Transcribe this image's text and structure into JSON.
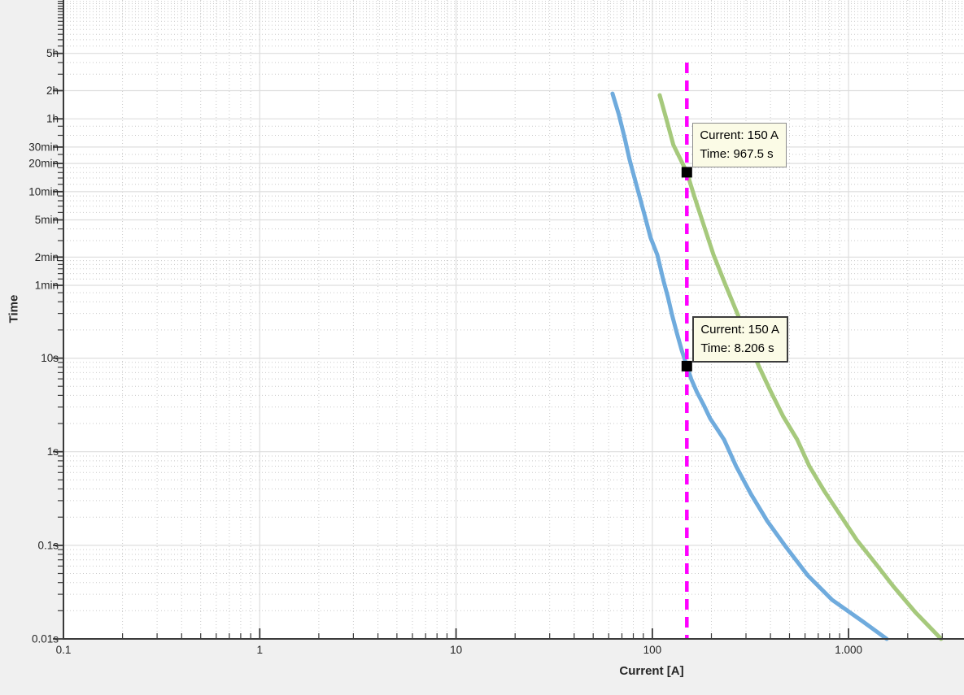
{
  "chart_data": {
    "type": "line",
    "title": "",
    "xlabel": "Current [A]",
    "ylabel": "Time",
    "xscale": "log",
    "yscale": "log",
    "xlim": [
      0.1,
      3872
    ],
    "ylim": [
      0.01,
      67000
    ],
    "grid": "major-solid-minor-dotted",
    "background_color": "#f0f0f0",
    "plot_background_color": "#ffffff",
    "major_grid_color": "#dedede",
    "minor_grid_color": "#c9c9c9",
    "axis_color": "#3a3a3a",
    "x_ticks": [
      {
        "v": 0.1,
        "label": "0.1"
      },
      {
        "v": 1,
        "label": "1"
      },
      {
        "v": 10,
        "label": "10"
      },
      {
        "v": 100,
        "label": "100"
      },
      {
        "v": 1000,
        "label": "1.000"
      }
    ],
    "x_minor": [
      0.2,
      0.3,
      0.4,
      0.5,
      0.6,
      0.7,
      0.8,
      0.9,
      2,
      3,
      4,
      5,
      6,
      7,
      8,
      9,
      20,
      30,
      40,
      50,
      60,
      70,
      80,
      90,
      200,
      300,
      400,
      500,
      600,
      700,
      800,
      900,
      2000,
      3000
    ],
    "y_ticks": [
      {
        "t": 0.01,
        "label": "0.01s"
      },
      {
        "t": 0.1,
        "label": "0.1s"
      },
      {
        "t": 1,
        "label": "1s"
      },
      {
        "t": 10,
        "label": "10s"
      },
      {
        "t": 60,
        "label": "1min"
      },
      {
        "t": 120,
        "label": "2min"
      },
      {
        "t": 300,
        "label": "5min"
      },
      {
        "t": 600,
        "label": "10min"
      },
      {
        "t": 1200,
        "label": "20min"
      },
      {
        "t": 1800,
        "label": "30min"
      },
      {
        "t": 3600,
        "label": "1h"
      },
      {
        "t": 7200,
        "label": "2h"
      },
      {
        "t": 18000,
        "label": "5h"
      }
    ],
    "y_minor": [
      0.02,
      0.03,
      0.04,
      0.05,
      0.06,
      0.07,
      0.08,
      0.09,
      0.2,
      0.3,
      0.4,
      0.5,
      0.6,
      0.7,
      0.8,
      0.9,
      2,
      3,
      4,
      5,
      6,
      7,
      8,
      9,
      20,
      30,
      40,
      50,
      70,
      80,
      90,
      100,
      110,
      180,
      240,
      360,
      420,
      480,
      540,
      720,
      840,
      960,
      1080,
      1500,
      2400,
      3000,
      10800,
      14400,
      21600,
      25200,
      28800,
      32400,
      36000,
      39600,
      43200,
      46800,
      50400,
      54000,
      57600,
      61200,
      64800
    ],
    "series": [
      {
        "name": "blue-curve",
        "color": "#6fabdd",
        "width": 5,
        "points": [
          [
            62.7,
            6700
          ],
          [
            67.4,
            4060
          ],
          [
            72.4,
            2230
          ],
          [
            76.6,
            1320
          ],
          [
            81,
            850
          ],
          [
            86,
            537
          ],
          [
            92,
            319
          ],
          [
            98,
            194
          ],
          [
            106,
            127
          ],
          [
            114,
            67
          ],
          [
            120,
            45
          ],
          [
            126,
            29
          ],
          [
            133,
            19
          ],
          [
            141,
            12.2
          ],
          [
            150,
            8.206
          ],
          [
            158,
            5.94
          ],
          [
            169,
            4.31
          ],
          [
            183,
            3.13
          ],
          [
            197,
            2.27
          ],
          [
            215,
            1.72
          ],
          [
            232,
            1.35
          ],
          [
            267,
            0.7
          ],
          [
            318,
            0.353
          ],
          [
            385,
            0.182
          ],
          [
            483,
            0.094
          ],
          [
            619,
            0.0477
          ],
          [
            824,
            0.0261
          ],
          [
            1174,
            0.0155
          ],
          [
            1564,
            0.01
          ]
        ]
      },
      {
        "name": "green-curve",
        "color": "#a6c97c",
        "width": 5,
        "points": [
          [
            109,
            6440
          ],
          [
            119,
            3330
          ],
          [
            128,
            1900
          ],
          [
            150,
            967.5
          ],
          [
            163,
            548
          ],
          [
            183,
            261
          ],
          [
            205,
            127
          ],
          [
            236,
            60.7
          ],
          [
            273,
            28.9
          ],
          [
            309,
            14.9
          ],
          [
            349,
            8.2
          ],
          [
            399,
            4.5
          ],
          [
            465,
            2.37
          ],
          [
            547,
            1.35
          ],
          [
            631,
            0.7
          ],
          [
            750,
            0.383
          ],
          [
            908,
            0.21
          ],
          [
            1098,
            0.115
          ],
          [
            1380,
            0.063
          ],
          [
            1687,
            0.0367
          ],
          [
            2183,
            0.0194
          ],
          [
            2960,
            0.01
          ]
        ]
      }
    ],
    "cursor_line": {
      "current_a": 150,
      "color": "#ff00ff",
      "style": "dashed"
    },
    "datatips": [
      {
        "current_a": 150,
        "time_s": 967.5,
        "style": "plain",
        "lines": [
          "Current: 150 A",
          "Time: 967.5 s"
        ]
      },
      {
        "current_a": 150,
        "time_s": 8.206,
        "style": "selected",
        "lines": [
          "Current: 150 A",
          "Time: 8.206 s"
        ]
      }
    ],
    "marker_color": "#000000"
  }
}
